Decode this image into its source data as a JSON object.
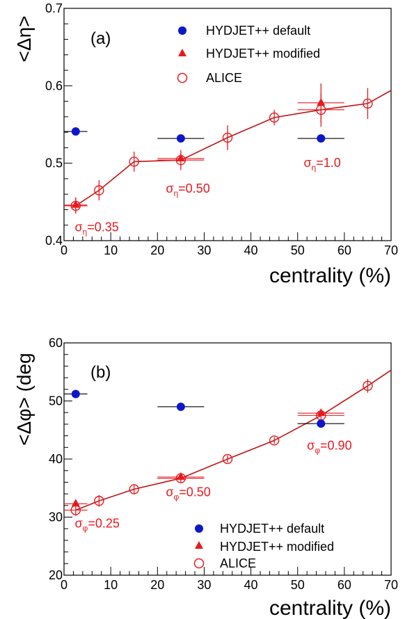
{
  "chart_data": [
    {
      "type": "scatter",
      "panel_label": "(a)",
      "xlabel": "centrality (%)",
      "ylabel": "<Δη>",
      "xlim": [
        0,
        70
      ],
      "ylim": [
        0.4,
        0.7
      ],
      "x_ticks": [
        0,
        10,
        20,
        30,
        40,
        50,
        60,
        70
      ],
      "x_tick_labels": [
        "0",
        "10",
        "20",
        "30",
        "40",
        "50",
        "60",
        "70"
      ],
      "y_ticks": [
        0.4,
        0.5,
        0.6,
        0.7
      ],
      "y_tick_labels": [
        "0.4",
        "0.5",
        "0.6",
        "0.7"
      ],
      "grid": false,
      "legend_position": "top-center",
      "series": [
        {
          "name": "HYDJET++ default",
          "marker": "filled-circle",
          "color": "#0d17c9",
          "points": [
            {
              "x": 2.5,
              "y": 0.541,
              "xerr": 2.5,
              "yerr": 0
            },
            {
              "x": 25,
              "y": 0.532,
              "xerr": 5,
              "yerr": 0
            },
            {
              "x": 55,
              "y": 0.532,
              "xerr": 5,
              "yerr": 0
            }
          ]
        },
        {
          "name": "HYDJET++ modified",
          "marker": "filled-triangle",
          "color": "#e8191d",
          "points": [
            {
              "x": 2.5,
              "y": 0.446,
              "xerr": 2.5,
              "yerr": 0.01
            },
            {
              "x": 25,
              "y": 0.506,
              "xerr": 5,
              "yerr": 0.008
            },
            {
              "x": 55,
              "y": 0.578,
              "xerr": 5,
              "yerr": 0.025
            }
          ]
        },
        {
          "name": "ALICE",
          "marker": "open-circle",
          "color": "#e8191d",
          "points": [
            {
              "x": 2.5,
              "y": 0.445,
              "xerr": 2.5,
              "yerr": 0.01
            },
            {
              "x": 7.5,
              "y": 0.465,
              "xerr": 0,
              "yerr": 0.013
            },
            {
              "x": 15,
              "y": 0.502,
              "xerr": 0,
              "yerr": 0.013
            },
            {
              "x": 25,
              "y": 0.504,
              "xerr": 5,
              "yerr": 0.013
            },
            {
              "x": 35,
              "y": 0.533,
              "xerr": 0,
              "yerr": 0.016
            },
            {
              "x": 45,
              "y": 0.559,
              "xerr": 0,
              "yerr": 0.01
            },
            {
              "x": 55,
              "y": 0.569,
              "xerr": 5,
              "yerr": 0.022
            },
            {
              "x": 65,
              "y": 0.577,
              "xerr": 0,
              "yerr": 0.02
            }
          ]
        }
      ],
      "curve": {
        "color": "#c21212",
        "x": [
          2.5,
          7.5,
          15,
          25,
          35,
          45,
          55,
          65,
          70
        ],
        "y": [
          0.445,
          0.465,
          0.502,
          0.504,
          0.533,
          0.559,
          0.569,
          0.577,
          0.594
        ]
      },
      "annotations": [
        {
          "symbol": "σ",
          "sub": "η",
          "value": "=0.35",
          "x": 2.3,
          "y": 0.412
        },
        {
          "symbol": "σ",
          "sub": "η",
          "value": "=0.50",
          "x": 21.8,
          "y": 0.462
        },
        {
          "symbol": "σ",
          "sub": "η",
          "value": "=1.0",
          "x": 51.3,
          "y": 0.495
        }
      ]
    },
    {
      "type": "scatter",
      "panel_label": "(b)",
      "xlabel": "centrality (%)",
      "ylabel": "<Δφ> (deg",
      "xlim": [
        0,
        70
      ],
      "ylim": [
        20,
        60
      ],
      "x_ticks": [
        0,
        10,
        20,
        30,
        40,
        50,
        60,
        70
      ],
      "x_tick_labels": [
        "0",
        "10",
        "20",
        "30",
        "40",
        "50",
        "60",
        "70"
      ],
      "y_ticks": [
        20,
        30,
        40,
        50,
        60
      ],
      "y_tick_labels": [
        "20",
        "30",
        "40",
        "50",
        "60"
      ],
      "grid": false,
      "legend_position": "bottom-right",
      "series": [
        {
          "name": "HYDJET++ default",
          "marker": "filled-circle",
          "color": "#0d17c9",
          "points": [
            {
              "x": 2.5,
              "y": 51.2,
              "xerr": 2.5,
              "yerr": 0
            },
            {
              "x": 25,
              "y": 49.0,
              "xerr": 5,
              "yerr": 0
            },
            {
              "x": 55,
              "y": 46.1,
              "xerr": 5,
              "yerr": 0
            }
          ]
        },
        {
          "name": "HYDJET++ modified",
          "marker": "filled-triangle",
          "color": "#e8191d",
          "points": [
            {
              "x": 2.5,
              "y": 32.3,
              "xerr": 2.5,
              "yerr": 0.5
            },
            {
              "x": 25,
              "y": 36.9,
              "xerr": 5,
              "yerr": 0.5
            },
            {
              "x": 55,
              "y": 47.9,
              "xerr": 5,
              "yerr": 0.6
            }
          ]
        },
        {
          "name": "ALICE",
          "marker": "open-circle",
          "color": "#e8191d",
          "points": [
            {
              "x": 2.5,
              "y": 31.2,
              "xerr": 2.5,
              "yerr": 1.0
            },
            {
              "x": 7.5,
              "y": 32.8,
              "xerr": 0,
              "yerr": 1.0
            },
            {
              "x": 15,
              "y": 34.8,
              "xerr": 0,
              "yerr": 0.8
            },
            {
              "x": 25,
              "y": 36.7,
              "xerr": 5,
              "yerr": 0.8
            },
            {
              "x": 35,
              "y": 40.0,
              "xerr": 0,
              "yerr": 0.6
            },
            {
              "x": 45,
              "y": 43.2,
              "xerr": 0,
              "yerr": 0.6
            },
            {
              "x": 55,
              "y": 47.5,
              "xerr": 5,
              "yerr": 1.0
            },
            {
              "x": 65,
              "y": 52.6,
              "xerr": 0,
              "yerr": 1.2
            }
          ]
        }
      ],
      "curve": {
        "color": "#c21212",
        "x": [
          2.5,
          7.5,
          15,
          25,
          35,
          45,
          55,
          65,
          70
        ],
        "y": [
          31.2,
          32.8,
          34.8,
          36.7,
          40.0,
          43.2,
          47.5,
          52.6,
          55.3
        ]
      },
      "annotations": [
        {
          "symbol": "σ",
          "sub": "φ",
          "value": "=0.25",
          "x": 2.3,
          "y": 28.2
        },
        {
          "symbol": "σ",
          "sub": "φ",
          "value": "=0.50",
          "x": 21.8,
          "y": 33.6
        },
        {
          "symbol": "σ",
          "sub": "φ",
          "value": "=0.90",
          "x": 52.0,
          "y": 41.6
        }
      ]
    }
  ]
}
